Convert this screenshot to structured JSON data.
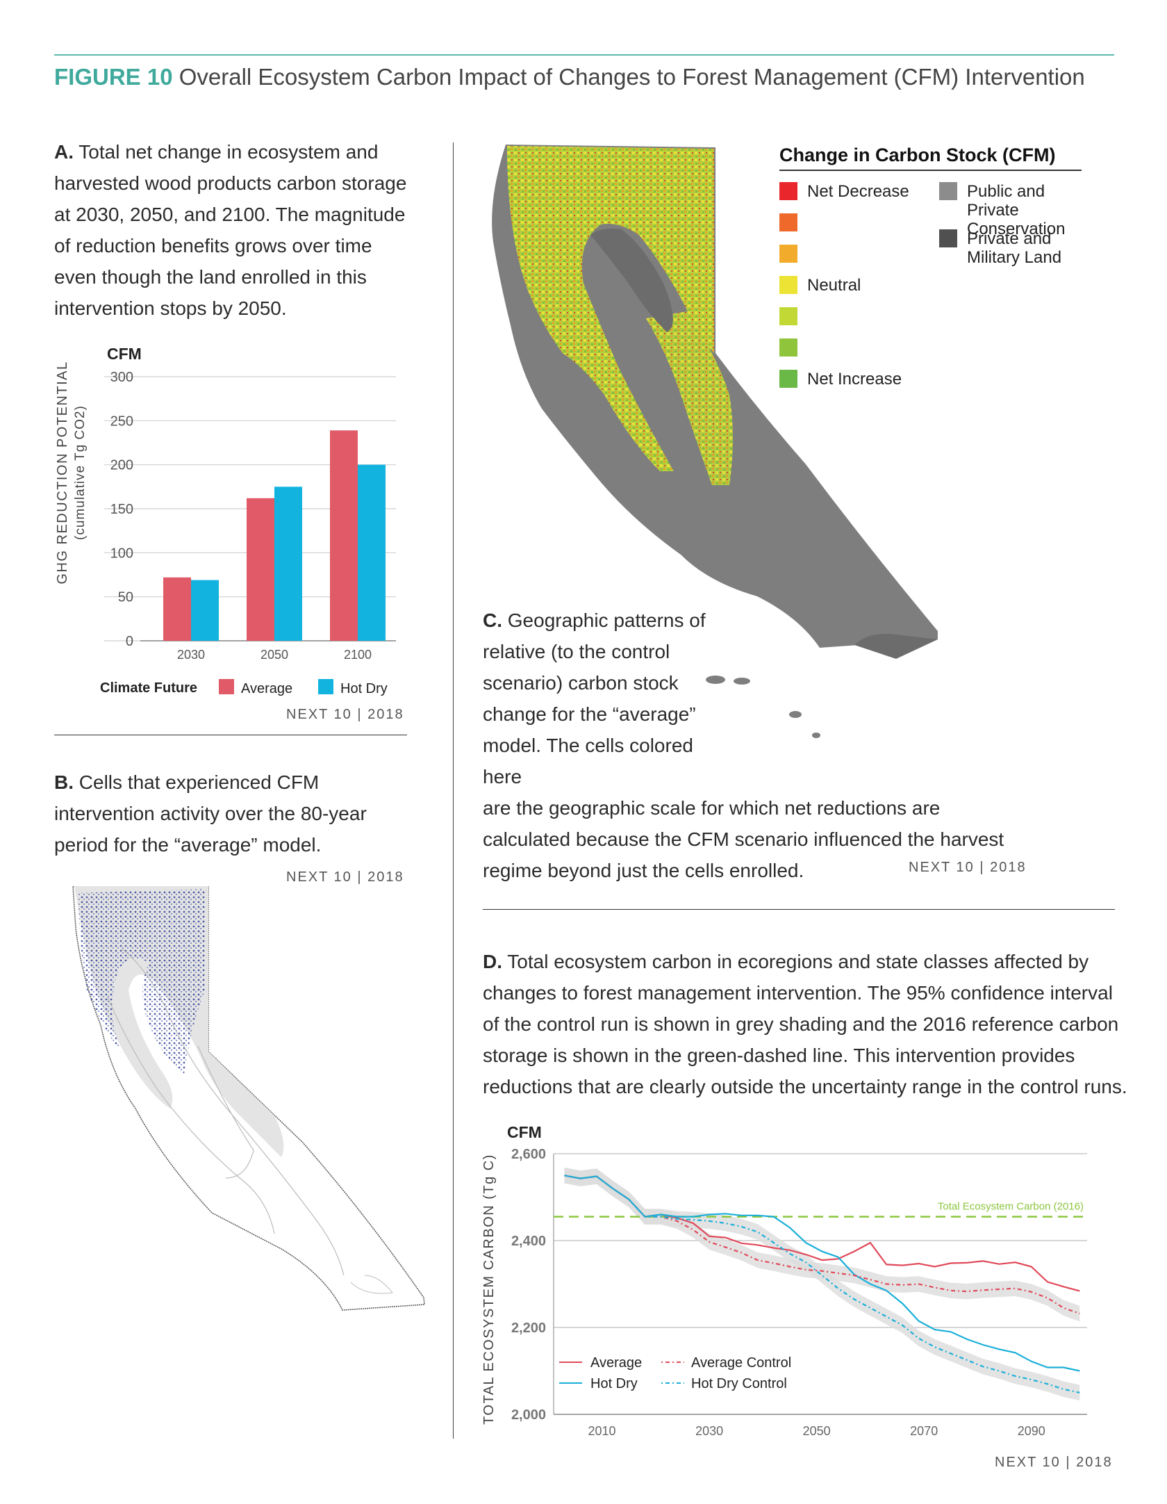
{
  "figure": {
    "label": "FIGURE 10",
    "title": "Overall Ecosystem Carbon Impact of Changes to Forest Management (CFM) Intervention"
  },
  "panel_a": {
    "letter": "A.",
    "text": "Total net change in ecosystem and harvested wood products carbon storage at 2030, 2050, and 2100. The magnitude of reduction benefits grows over time even though the land enrolled in this intervention stops by 2050.",
    "credit": "NEXT 10 | 2018"
  },
  "panel_b": {
    "letter": "B.",
    "text": "Cells that experienced CFM intervention activity over the 80-year period for the “average” model.",
    "credit": "NEXT 10 | 2018"
  },
  "panel_c": {
    "letter": "C.",
    "text_narrow": "Geographic patterns of relative (to the control scenario) carbon stock change for the “average” model. The cells colored here",
    "text_wide": "are the geographic scale for which net reductions are calculated because the CFM scenario influenced the harvest regime beyond just the cells enrolled.",
    "credit": "NEXT 10 | 2018",
    "legend_title": "Change in Carbon Stock (CFM)",
    "legend": [
      {
        "label": "Net Decrease",
        "color": "#e8262c"
      },
      {
        "label": "",
        "color": "#ef6a2a"
      },
      {
        "label": "",
        "color": "#f2ab2a"
      },
      {
        "label": "Neutral",
        "color": "#ece334"
      },
      {
        "label": "",
        "color": "#c2d935"
      },
      {
        "label": "",
        "color": "#8fc43b"
      },
      {
        "label": "Net Increase",
        "color": "#6ab845"
      }
    ],
    "legend_land": [
      {
        "label": "Public and Private Conservation",
        "color": "#8c8c8c"
      },
      {
        "label": "Private and Military Land",
        "color": "#505050"
      }
    ]
  },
  "panel_d": {
    "letter": "D.",
    "text": "Total ecosystem carbon in ecoregions and state classes affected by changes to forest management intervention. The 95% confidence interval of the control run is shown in grey shading and the 2016 reference carbon storage is shown in the green-dashed line. This intervention provides reductions that are clearly outside the uncertainty range in the control runs.",
    "credit": "NEXT 10 | 2018"
  },
  "chart_data": [
    {
      "type": "bar",
      "title": "CFM",
      "ylabel": "GHG REDUCTION POTENTIAL",
      "ylabel2": "(cumulative Tg CO2)",
      "ylim": [
        0,
        300
      ],
      "yticks": [
        "0",
        "50",
        "100",
        "150",
        "200",
        "250",
        "300"
      ],
      "categories": [
        "2030",
        "2050",
        "2100"
      ],
      "legend_title": "Climate Future",
      "series": [
        {
          "name": "Average",
          "color": "#e05a68",
          "values": [
            72,
            162,
            239
          ]
        },
        {
          "name": "Hot Dry",
          "color": "#12b4df",
          "values": [
            69,
            175,
            200
          ]
        }
      ]
    },
    {
      "type": "line",
      "title": "CFM",
      "ylabel": "TOTAL ECOSYSTEM CARBON (Tg C)",
      "ylim": [
        2000,
        2600
      ],
      "xlim": [
        2001,
        2100
      ],
      "yticks": [
        "2,000",
        "2,200",
        "2,400",
        "2,600"
      ],
      "xticks": [
        "2010",
        "2030",
        "2050",
        "2070",
        "2090"
      ],
      "reference": {
        "label": "Total Ecosystem Carbon (2016)",
        "value": 2455,
        "color": "#8cc63f"
      },
      "x": [
        2003,
        2006,
        2009,
        2012,
        2015,
        2018,
        2021,
        2024,
        2027,
        2030,
        2033,
        2036,
        2039,
        2042,
        2045,
        2048,
        2051,
        2054,
        2057,
        2060,
        2063,
        2066,
        2069,
        2072,
        2075,
        2078,
        2081,
        2084,
        2087,
        2090,
        2093,
        2096,
        2099
      ],
      "series": [
        {
          "name": "Average",
          "color": "#e04a5a",
          "style": "solid",
          "values": [
            2550,
            2543,
            2548,
            2520,
            2495,
            2455,
            2460,
            2452,
            2440,
            2410,
            2407,
            2394,
            2390,
            2383,
            2378,
            2368,
            2355,
            2358,
            2375,
            2395,
            2345,
            2343,
            2347,
            2340,
            2348,
            2349,
            2353,
            2346,
            2350,
            2340,
            2305,
            2294,
            2284
          ]
        },
        {
          "name": "Hot Dry",
          "color": "#1aafd9",
          "style": "solid",
          "values": [
            2550,
            2543,
            2548,
            2520,
            2495,
            2455,
            2460,
            2455,
            2455,
            2460,
            2462,
            2458,
            2458,
            2455,
            2430,
            2395,
            2375,
            2362,
            2322,
            2300,
            2285,
            2255,
            2215,
            2195,
            2190,
            2173,
            2160,
            2150,
            2142,
            2122,
            2108,
            2108,
            2100
          ]
        },
        {
          "name": "Average Control",
          "color": "#e04a5a",
          "style": "dotted",
          "values": [
            2550,
            2543,
            2548,
            2520,
            2495,
            2455,
            2455,
            2445,
            2425,
            2397,
            2385,
            2372,
            2355,
            2348,
            2340,
            2333,
            2330,
            2325,
            2320,
            2310,
            2300,
            2298,
            2300,
            2292,
            2285,
            2283,
            2286,
            2288,
            2290,
            2282,
            2268,
            2245,
            2232
          ]
        },
        {
          "name": "Hot Dry Control",
          "color": "#1aafd9",
          "style": "dotted",
          "values": [
            2550,
            2543,
            2548,
            2520,
            2495,
            2455,
            2455,
            2450,
            2448,
            2445,
            2440,
            2432,
            2420,
            2395,
            2370,
            2350,
            2320,
            2290,
            2265,
            2245,
            2225,
            2205,
            2175,
            2155,
            2140,
            2125,
            2110,
            2100,
            2088,
            2080,
            2070,
            2058,
            2050
          ]
        }
      ]
    }
  ]
}
